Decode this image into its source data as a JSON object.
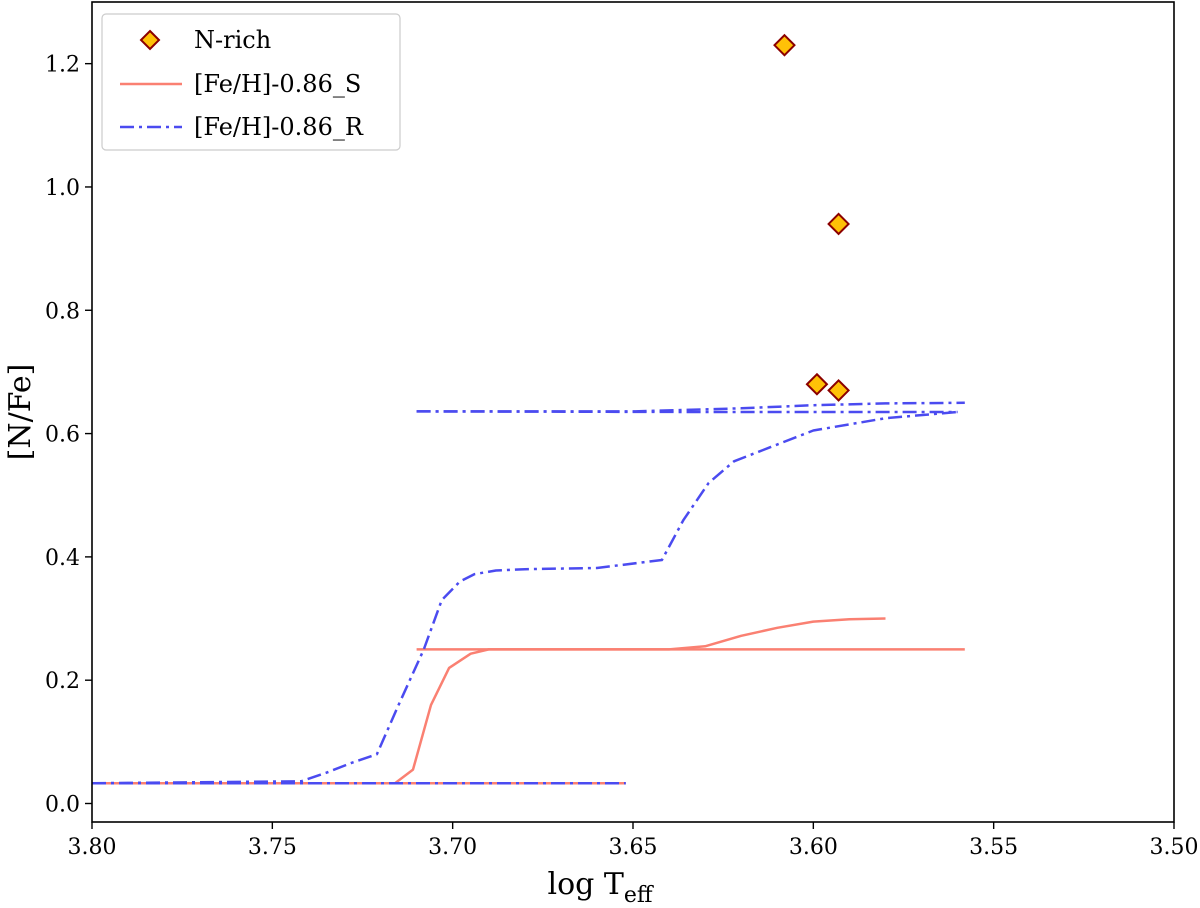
{
  "chart_data": {
    "type": "line",
    "title": "",
    "xlabel": "log T",
    "xlabel_sub": "eff",
    "ylabel": "[N/Fe]",
    "xlim": [
      3.8,
      3.5
    ],
    "ylim": [
      -0.03,
      1.3
    ],
    "x_ticks": [
      3.8,
      3.75,
      3.7,
      3.65,
      3.6,
      3.55,
      3.5
    ],
    "x_tick_labels": [
      "3.80",
      "3.75",
      "3.70",
      "3.65",
      "3.60",
      "3.55",
      "3.50"
    ],
    "y_ticks": [
      0.0,
      0.2,
      0.4,
      0.6,
      0.8,
      1.0,
      1.2
    ],
    "y_tick_labels": [
      "0.0",
      "0.2",
      "0.4",
      "0.6",
      "0.8",
      "1.0",
      "1.2"
    ],
    "grid": false,
    "legend_position": "top-left",
    "series": [
      {
        "name": "N-rich",
        "kind": "scatter",
        "marker": "diamond",
        "color": "#FFC107",
        "edge_color": "#8B0000",
        "x": [
          3.608,
          3.599,
          3.593,
          3.593
        ],
        "y": [
          1.23,
          0.68,
          0.94,
          0.67
        ]
      },
      {
        "name": "[Fe/H]-0.86_S",
        "kind": "line",
        "style": "solid",
        "color": "#FA8072",
        "segments": [
          {
            "x": [
              3.8,
              3.652
            ],
            "y": [
              0.033,
              0.033
            ]
          },
          {
            "x": [
              3.71,
              3.558
            ],
            "y": [
              0.25,
              0.25
            ]
          },
          {
            "x": [
              3.716,
              3.711,
              3.706,
              3.701,
              3.695,
              3.69,
              3.68,
              3.64,
              3.63,
              3.62,
              3.61,
              3.6,
              3.59,
              3.58
            ],
            "y": [
              0.033,
              0.055,
              0.16,
              0.22,
              0.243,
              0.25,
              0.25,
              0.25,
              0.255,
              0.272,
              0.285,
              0.295,
              0.299,
              0.3
            ]
          }
        ]
      },
      {
        "name": "[Fe/H]-0.86_R",
        "kind": "line",
        "style": "dashdot",
        "color": "#4B4BF0",
        "segments": [
          {
            "x": [
              3.8,
              3.652
            ],
            "y": [
              0.033,
              0.033
            ]
          },
          {
            "x": [
              3.8,
              3.742,
              3.735,
              3.728,
              3.721,
              3.715,
              3.708,
              3.703,
              3.698,
              3.694,
              3.688,
              3.68,
              3.66,
              3.642,
              3.636,
              3.629,
              3.622,
              3.6,
              3.58,
              3.56
            ],
            "y": [
              0.033,
              0.036,
              0.05,
              0.066,
              0.08,
              0.16,
              0.25,
              0.33,
              0.36,
              0.372,
              0.378,
              0.38,
              0.382,
              0.395,
              0.46,
              0.52,
              0.555,
              0.605,
              0.625,
              0.635
            ]
          },
          {
            "x": [
              3.71,
              3.65,
              3.62,
              3.6,
              3.58,
              3.558
            ],
            "y": [
              0.636,
              0.636,
              0.641,
              0.646,
              0.649,
              0.65
            ]
          },
          {
            "x": [
              3.71,
              3.63,
              3.56
            ],
            "y": [
              0.636,
              0.635,
              0.635
            ]
          }
        ]
      }
    ]
  }
}
